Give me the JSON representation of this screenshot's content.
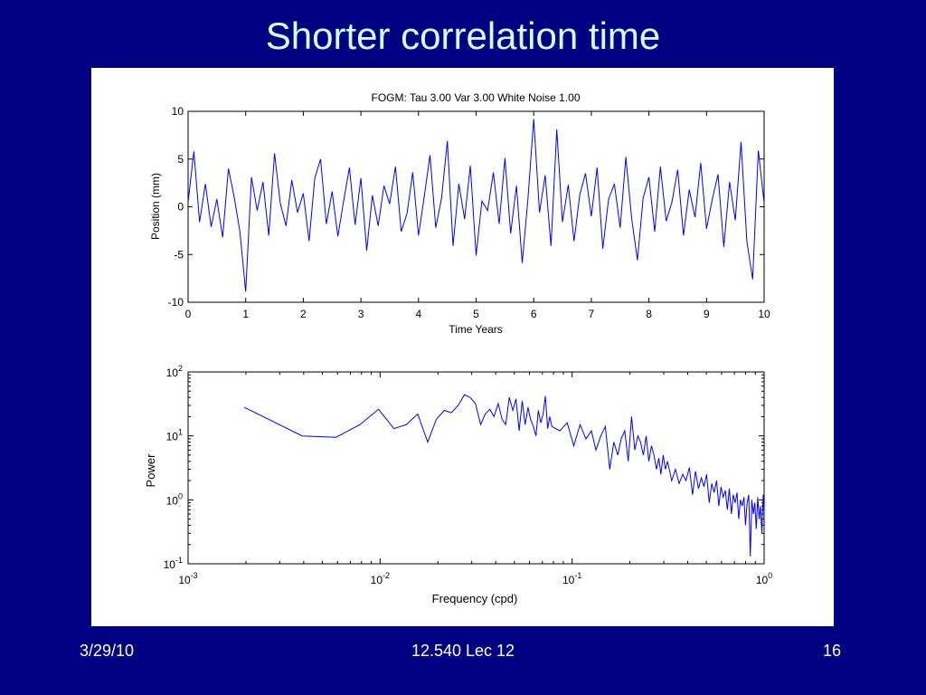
{
  "slide": {
    "title": "Shorter correlation time",
    "footer_date": "3/29/10",
    "footer_center": "12.540 Lec 12",
    "footer_page": "16"
  },
  "colors": {
    "background": "#000080",
    "title": "#ccffff",
    "line": "#0000ff"
  },
  "chart_data": [
    {
      "type": "line",
      "title": "FOGM: Tau      3.00 Var   3.00 White Noise   1.00",
      "xlabel": "Time Years",
      "ylabel": "Position (mm)",
      "xlim": [
        0,
        10
      ],
      "ylim": [
        -10,
        10
      ],
      "xticks": [
        "0",
        "1",
        "2",
        "3",
        "4",
        "5",
        "6",
        "7",
        "8",
        "9",
        "10"
      ],
      "yticks": [
        "10",
        "5",
        "0",
        "-5",
        "-10"
      ],
      "grid": false,
      "series": [
        {
          "x": [
            0.0,
            0.1,
            0.2,
            0.3,
            0.4,
            0.5,
            0.6,
            0.7,
            0.8,
            0.9,
            1.0,
            1.1,
            1.2,
            1.3,
            1.4,
            1.5,
            1.6,
            1.7,
            1.8,
            1.9,
            2.0,
            2.1,
            2.2,
            2.3,
            2.4,
            2.5,
            2.6,
            2.7,
            2.8,
            2.9,
            3.0,
            3.1,
            3.2,
            3.3,
            3.4,
            3.5,
            3.6,
            3.7,
            3.8,
            3.9,
            4.0,
            4.1,
            4.2,
            4.3,
            4.4,
            4.5,
            4.6,
            4.7,
            4.8,
            4.9,
            5.0,
            5.1,
            5.2,
            5.3,
            5.4,
            5.5,
            5.6,
            5.7,
            5.8,
            5.9,
            6.0,
            6.1,
            6.2,
            6.3,
            6.4,
            6.5,
            6.6,
            6.7,
            6.8,
            6.9,
            7.0,
            7.1,
            7.2,
            7.3,
            7.4,
            7.5,
            7.6,
            7.7,
            7.8,
            7.9,
            8.0,
            8.1,
            8.2,
            8.3,
            8.4,
            8.5,
            8.6,
            8.7,
            8.8,
            8.9,
            9.0,
            9.1,
            9.2,
            9.3,
            9.4,
            9.5,
            9.6,
            9.7,
            9.8,
            9.9,
            10.0
          ],
          "values": [
            0.5,
            5.8,
            -1.6,
            2.4,
            -2.1,
            0.8,
            -3.2,
            4.0,
            1.0,
            -2.6,
            -8.9,
            3.1,
            -0.4,
            2.6,
            -3.0,
            5.6,
            0.4,
            -2.0,
            2.8,
            -0.6,
            1.4,
            -3.6,
            3.0,
            5.0,
            -1.8,
            1.6,
            -3.1,
            0.6,
            4.1,
            -1.9,
            3.0,
            -4.6,
            1.2,
            -2.0,
            2.2,
            0.3,
            4.2,
            -2.6,
            -0.7,
            3.6,
            -3.0,
            1.1,
            5.4,
            -2.2,
            0.9,
            6.9,
            -4.1,
            2.4,
            -1.3,
            4.3,
            -5.1,
            0.6,
            -0.4,
            3.6,
            -1.8,
            5.1,
            -2.8,
            2.2,
            -5.9,
            0.8,
            9.2,
            -0.6,
            3.3,
            -4.1,
            8.1,
            -1.6,
            2.3,
            -3.6,
            1.3,
            3.5,
            -1.0,
            4.1,
            -4.4,
            0.8,
            2.4,
            -2.2,
            5.2,
            -1.2,
            -5.6,
            0.9,
            3.1,
            -2.6,
            4.2,
            -1.5,
            0.5,
            3.9,
            -3.0,
            1.8,
            -1.1,
            4.6,
            -2.3,
            0.8,
            3.4,
            -4.2,
            2.6,
            -1.4,
            6.8,
            -3.6,
            -7.6,
            5.9,
            0.4
          ]
        }
      ]
    },
    {
      "type": "line",
      "title": "",
      "xlabel": "Frequency (cpd)",
      "ylabel": "Power",
      "xscale": "log",
      "yscale": "log",
      "xlim": [
        0.001,
        1
      ],
      "ylim": [
        0.1,
        100
      ],
      "xticks": [
        {
          "base": "10",
          "exp": "-3"
        },
        {
          "base": "10",
          "exp": "-2"
        },
        {
          "base": "10",
          "exp": "-1"
        },
        {
          "base": "10",
          "exp": "0"
        }
      ],
      "yticks": [
        {
          "base": "10",
          "exp": "2"
        },
        {
          "base": "10",
          "exp": "1"
        },
        {
          "base": "10",
          "exp": "0"
        },
        {
          "base": "10",
          "exp": "-1"
        }
      ],
      "grid": false,
      "series": [
        {
          "x": [
            0.00196,
            0.00393,
            0.00589,
            0.00785,
            0.00981,
            0.0118,
            0.0137,
            0.0157,
            0.0177,
            0.0196,
            0.0216,
            0.0235,
            0.0255,
            0.0275,
            0.0294,
            0.0314,
            0.0334,
            0.0353,
            0.0373,
            0.0392,
            0.0412,
            0.0432,
            0.0451,
            0.0471,
            0.0491,
            0.051,
            0.053,
            0.055,
            0.0569,
            0.0589,
            0.0608,
            0.0628,
            0.0648,
            0.0667,
            0.0687,
            0.0706,
            0.0726,
            0.0746,
            0.0765,
            0.0785,
            0.0863,
            0.0942,
            0.102,
            0.11,
            0.118,
            0.126,
            0.133,
            0.141,
            0.149,
            0.157,
            0.165,
            0.173,
            0.18,
            0.188,
            0.196,
            0.204,
            0.212,
            0.22,
            0.227,
            0.235,
            0.243,
            0.251,
            0.259,
            0.267,
            0.275,
            0.283,
            0.29,
            0.298,
            0.306,
            0.314,
            0.33,
            0.345,
            0.361,
            0.377,
            0.392,
            0.408,
            0.424,
            0.439,
            0.455,
            0.471,
            0.486,
            0.502,
            0.518,
            0.534,
            0.549,
            0.565,
            0.581,
            0.596,
            0.612,
            0.628,
            0.643,
            0.659,
            0.675,
            0.69,
            0.706,
            0.722,
            0.737,
            0.753,
            0.769,
            0.785,
            0.8,
            0.816,
            0.832,
            0.847,
            0.863,
            0.879,
            0.894,
            0.91,
            0.926,
            0.942,
            0.957,
            0.973,
            0.989,
            1.0
          ],
          "values": [
            28,
            10,
            9.5,
            15,
            26,
            13,
            15,
            22,
            8,
            18,
            25,
            23,
            30,
            44,
            40,
            32,
            15,
            22,
            26,
            20,
            32,
            18,
            15,
            40,
            25,
            38,
            12,
            35,
            15,
            28,
            18,
            14,
            10,
            25,
            16,
            22,
            42,
            13,
            20,
            14,
            12,
            16,
            7,
            15,
            9,
            12,
            6,
            10,
            14,
            3,
            8,
            5,
            9,
            12,
            4,
            20,
            6,
            10,
            8,
            5,
            10,
            4,
            7,
            5,
            3,
            4.5,
            2.5,
            5,
            3,
            4,
            2,
            3,
            1.8,
            2.5,
            2,
            3.2,
            1.2,
            2.8,
            1.5,
            2.2,
            1.6,
            2.5,
            0.9,
            1.8,
            1.3,
            2,
            0.8,
            1.6,
            1.1,
            1.4,
            0.7,
            1.5,
            0.6,
            1.2,
            0.9,
            1.3,
            0.5,
            1.0,
            0.8,
            1.1,
            0.4,
            0.9,
            1.2,
            0.13,
            1.0,
            0.6,
            0.9,
            0.35,
            1.1,
            0.5,
            0.8,
            0.3,
            1.2,
            0.6
          ]
        }
      ]
    }
  ]
}
